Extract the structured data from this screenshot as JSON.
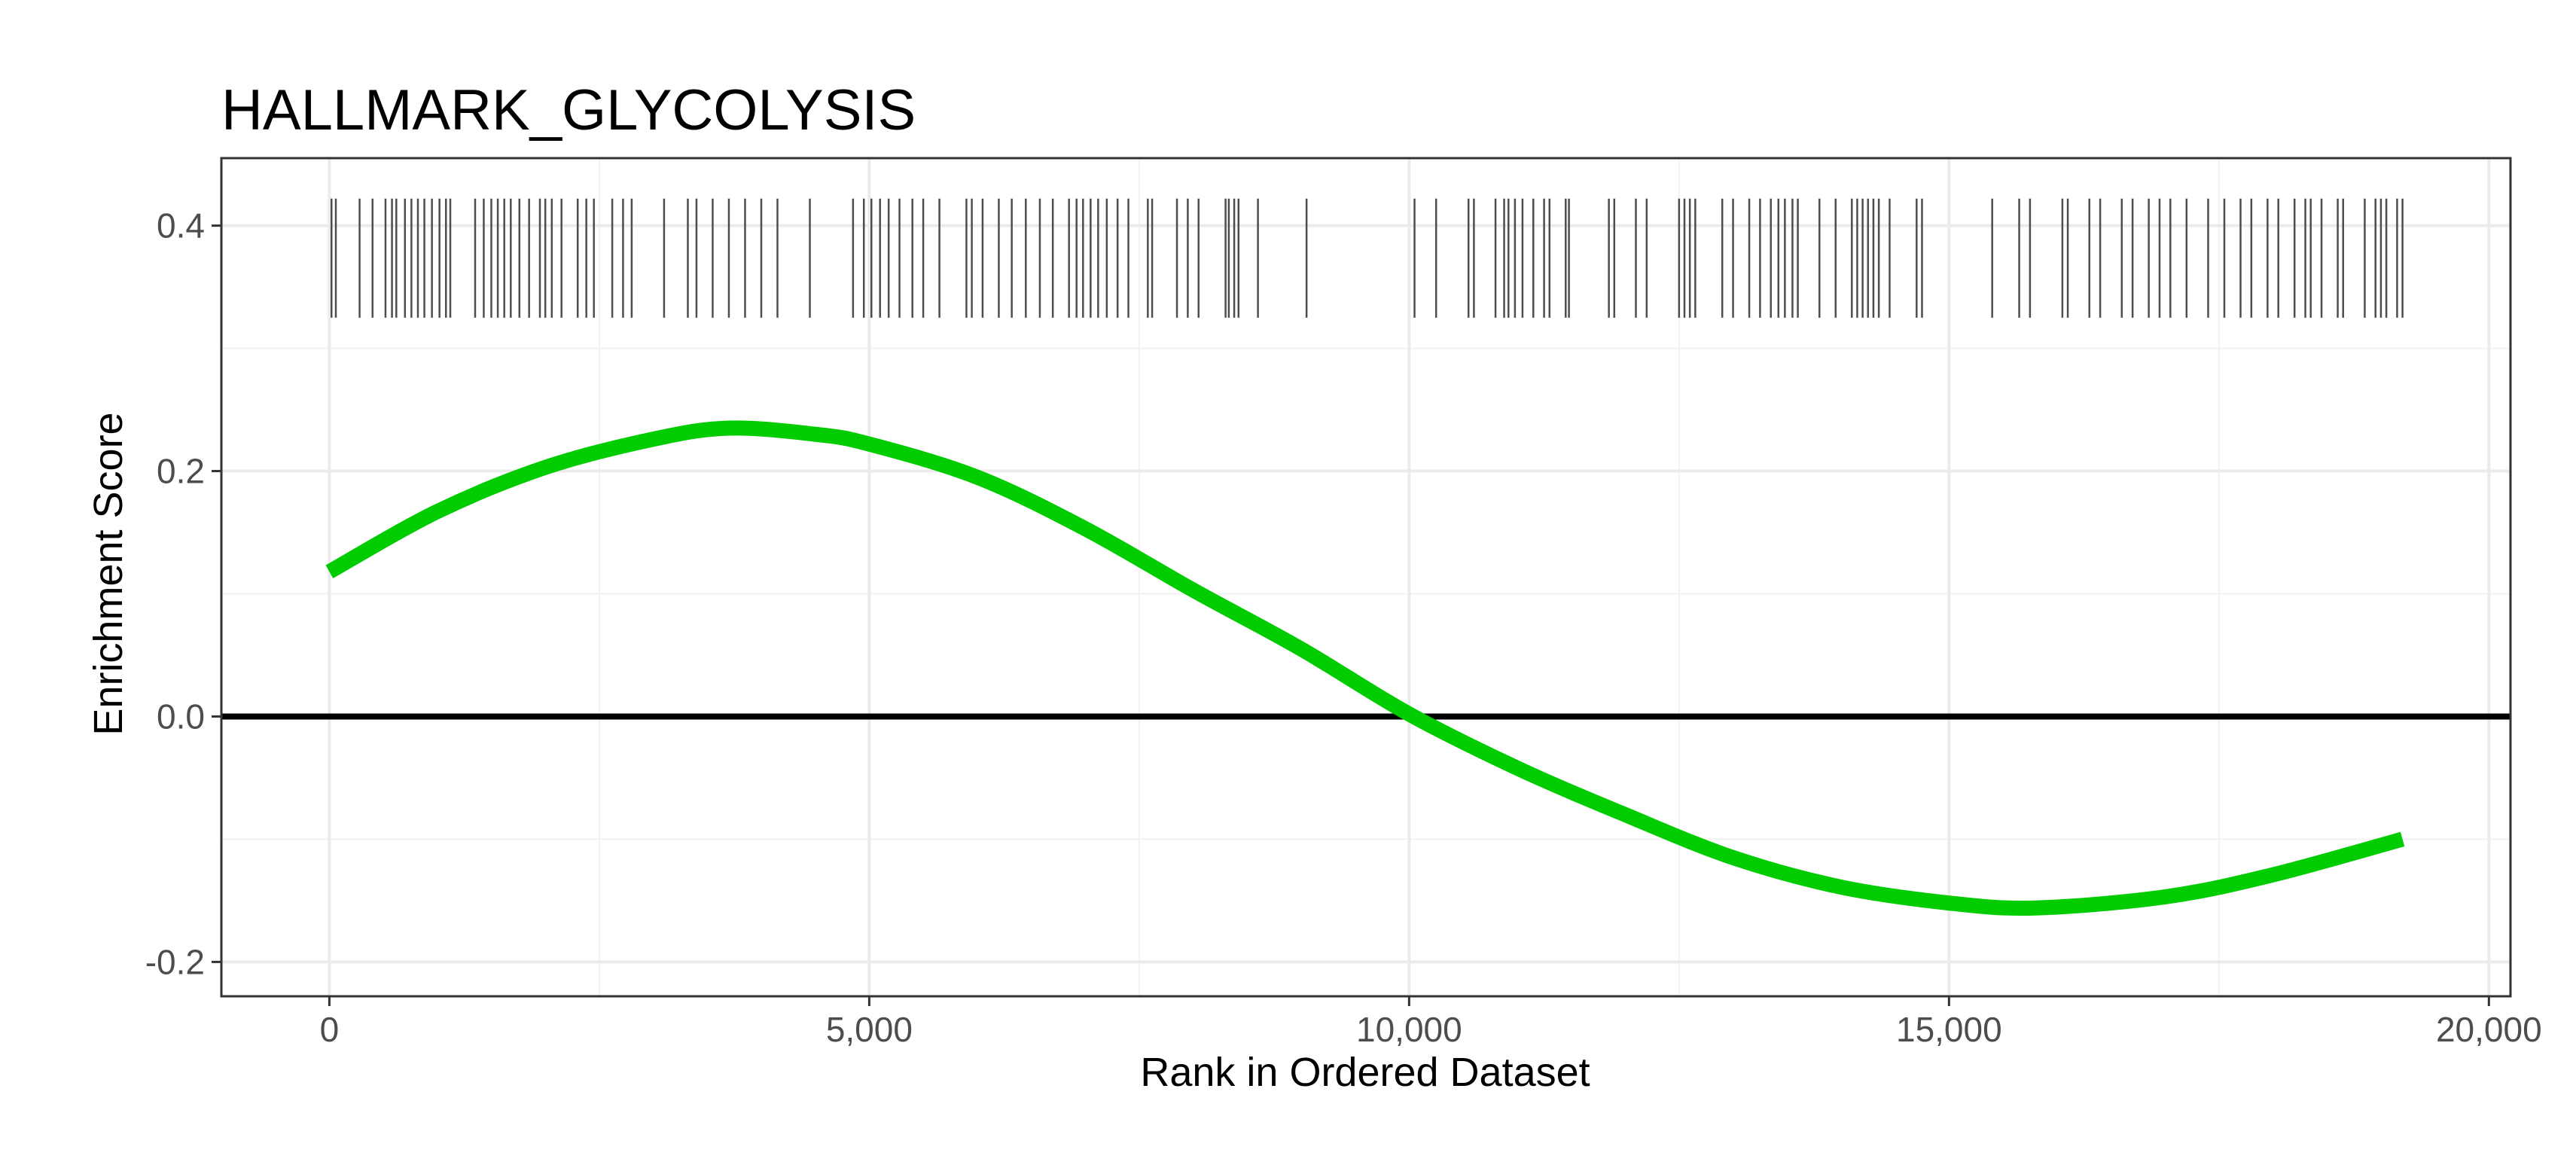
{
  "chart_data": {
    "type": "line",
    "title": "HALLMARK_GLYCOLYSIS",
    "xlabel": "Rank in Ordered Dataset",
    "ylabel": "Enrichment Score",
    "xlim": [
      -1000,
      20200
    ],
    "ylim": [
      -0.228,
      0.455
    ],
    "x_ticks": [
      0,
      5000,
      10000,
      15000,
      20000
    ],
    "x_tick_labels": [
      "0",
      "5,000",
      "10,000",
      "15,000",
      "20,000"
    ],
    "y_ticks": [
      -0.2,
      0.0,
      0.2,
      0.4
    ],
    "y_tick_labels": [
      "-0.2",
      "0.0",
      "0.2",
      "0.4"
    ],
    "grid": true,
    "reference_line_y": 0,
    "series": [
      {
        "color": "#00cc00",
        "x": [
          0,
          1000,
          2000,
          3000,
          3700,
          4500,
          5000,
          6000,
          7000,
          8000,
          9000,
          10000,
          11000,
          12000,
          13000,
          14000,
          15000,
          15800,
          17000,
          18000,
          19200
        ],
        "y": [
          0.118,
          0.167,
          0.203,
          0.226,
          0.235,
          0.23,
          0.222,
          0.195,
          0.153,
          0.103,
          0.055,
          0.002,
          -0.042,
          -0.08,
          -0.115,
          -0.139,
          -0.152,
          -0.156,
          -0.147,
          -0.129,
          -0.1
        ]
      }
    ],
    "rug": {
      "color": "#4d4d4d",
      "y_range": [
        0.325,
        0.422
      ],
      "positions": [
        20,
        60,
        280,
        400,
        520,
        580,
        620,
        700,
        760,
        820,
        880,
        950,
        1020,
        1080,
        1120,
        1350,
        1430,
        1500,
        1560,
        1620,
        1680,
        1760,
        1850,
        1950,
        2000,
        2060,
        2150,
        2300,
        2380,
        2450,
        2620,
        2720,
        2800,
        3100,
        3320,
        3400,
        3550,
        3700,
        3850,
        4000,
        4150,
        4450,
        4850,
        4950,
        5020,
        5100,
        5180,
        5280,
        5400,
        5500,
        5650,
        5900,
        5950,
        6050,
        6200,
        6320,
        6450,
        6580,
        6700,
        6850,
        6920,
        6980,
        7050,
        7120,
        7200,
        7300,
        7400,
        7580,
        7620,
        7850,
        7950,
        8050,
        8300,
        8330,
        8380,
        8420,
        8600,
        9050,
        10050,
        10250,
        10550,
        10600,
        10800,
        10880,
        10920,
        10980,
        11050,
        11150,
        11250,
        11300,
        11450,
        11480,
        11850,
        11900,
        12100,
        12200,
        12500,
        12550,
        12600,
        12650,
        12900,
        13000,
        13150,
        13250,
        13350,
        13420,
        13480,
        13550,
        13600,
        13800,
        13950,
        14100,
        14150,
        14200,
        14250,
        14300,
        14350,
        14450,
        14700,
        14750,
        15400,
        15650,
        15750,
        16050,
        16100,
        16300,
        16400,
        16600,
        16700,
        16850,
        16950,
        17050,
        17200,
        17400,
        17550,
        17700,
        17800,
        17950,
        18050,
        18200,
        18300,
        18350,
        18450,
        18600,
        18650,
        18850,
        18950,
        19000,
        19050,
        19150,
        19200
      ]
    }
  }
}
